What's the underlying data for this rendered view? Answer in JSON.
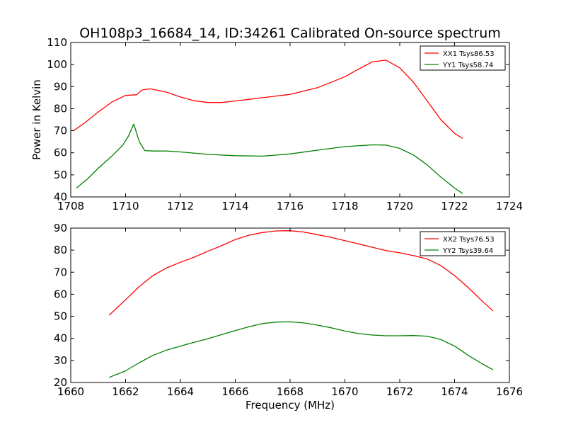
{
  "figure": {
    "title": "OH108p3_16684_14, ID:34261 Calibrated On-source spectrum",
    "background": "#ffffff"
  },
  "chart_data": [
    {
      "type": "line",
      "title": "OH108p3_16684_14, ID:34261 Calibrated On-source spectrum",
      "xlabel": "",
      "ylabel": "Power in Kelvin",
      "xlim": [
        1708,
        1724
      ],
      "ylim": [
        40,
        110
      ],
      "xticks": [
        1708,
        1710,
        1712,
        1714,
        1716,
        1718,
        1720,
        1722,
        1724
      ],
      "yticks": [
        40,
        50,
        60,
        70,
        80,
        90,
        100,
        110
      ],
      "grid": false,
      "legend_position": "top-right",
      "series": [
        {
          "name": "XX1 Tsys86.53",
          "color": "#ff0000",
          "x": [
            1708.1,
            1708.5,
            1709.0,
            1709.5,
            1710.0,
            1710.4,
            1710.6,
            1710.9,
            1711.5,
            1712.0,
            1712.5,
            1713.0,
            1713.5,
            1714.0,
            1714.5,
            1715.0,
            1716.0,
            1717.0,
            1718.0,
            1718.5,
            1719.0,
            1719.5,
            1720.0,
            1720.5,
            1721.0,
            1721.5,
            1722.0,
            1722.3
          ],
          "y": [
            70,
            73.5,
            78.5,
            83,
            86,
            86.3,
            88.5,
            89,
            87.5,
            85.3,
            83.6,
            82.8,
            82.8,
            83.5,
            84.2,
            85,
            86.5,
            89.5,
            94.5,
            98,
            101.2,
            102,
            98.5,
            92,
            83.5,
            75,
            68.8,
            66.5
          ]
        },
        {
          "name": "YY1 Tsys58.74",
          "color": "#008000",
          "x": [
            1708.2,
            1708.6,
            1709.0,
            1709.5,
            1709.9,
            1710.1,
            1710.3,
            1710.5,
            1710.7,
            1711.0,
            1711.5,
            1712.0,
            1713.0,
            1714.0,
            1715.0,
            1716.0,
            1717.0,
            1718.0,
            1719.0,
            1719.5,
            1720.0,
            1720.5,
            1721.0,
            1721.5,
            1722.0,
            1722.3
          ],
          "y": [
            44,
            48,
            53,
            58.5,
            63.5,
            67.5,
            73,
            65,
            61,
            60.8,
            60.8,
            60.4,
            59.3,
            58.7,
            58.5,
            59.5,
            61.2,
            62.8,
            63.6,
            63.5,
            62,
            59,
            54.5,
            49,
            44,
            41.5
          ]
        }
      ]
    },
    {
      "type": "line",
      "title": "",
      "xlabel": "Frequency (MHz)",
      "ylabel": "",
      "xlim": [
        1660,
        1676
      ],
      "ylim": [
        20,
        90
      ],
      "xticks": [
        1660,
        1662,
        1664,
        1666,
        1668,
        1670,
        1672,
        1674,
        1676
      ],
      "yticks": [
        20,
        30,
        40,
        50,
        60,
        70,
        80,
        90
      ],
      "grid": false,
      "legend_position": "top-right",
      "series": [
        {
          "name": "XX2 Tsys76.53",
          "color": "#ff0000",
          "x": [
            1661.4,
            1662.0,
            1662.5,
            1663.0,
            1663.5,
            1664.0,
            1664.5,
            1665.0,
            1665.5,
            1666.0,
            1666.5,
            1667.0,
            1667.5,
            1668.0,
            1668.5,
            1669.0,
            1669.5,
            1670.0,
            1670.5,
            1671.0,
            1671.5,
            1672.0,
            1672.5,
            1673.0,
            1673.5,
            1674.0,
            1674.5,
            1675.0,
            1675.4
          ],
          "y": [
            50.5,
            57.5,
            63.5,
            68.5,
            72,
            74.5,
            76.8,
            79.5,
            82,
            84.8,
            86.8,
            88,
            88.7,
            88.8,
            88.2,
            87,
            85.8,
            84.3,
            82.8,
            81.3,
            79.8,
            78.8,
            77.5,
            76,
            73,
            68.5,
            63,
            57,
            52.5
          ]
        },
        {
          "name": "YY2 Tsys39.64",
          "color": "#008000",
          "x": [
            1661.4,
            1662.0,
            1662.5,
            1663.0,
            1663.5,
            1664.0,
            1664.5,
            1665.0,
            1665.5,
            1666.0,
            1666.5,
            1667.0,
            1667.5,
            1668.0,
            1668.5,
            1669.0,
            1669.5,
            1670.0,
            1670.5,
            1671.0,
            1671.5,
            1672.0,
            1672.5,
            1673.0,
            1673.5,
            1674.0,
            1674.5,
            1675.0,
            1675.4
          ],
          "y": [
            22.3,
            25.3,
            29,
            32.3,
            34.7,
            36.5,
            38.2,
            39.8,
            41.7,
            43.5,
            45.3,
            46.7,
            47.4,
            47.5,
            47,
            46,
            44.8,
            43.3,
            42.2,
            41.5,
            41.2,
            41.2,
            41.3,
            41,
            39.5,
            36.5,
            32.3,
            28.5,
            25.8
          ]
        }
      ]
    }
  ]
}
